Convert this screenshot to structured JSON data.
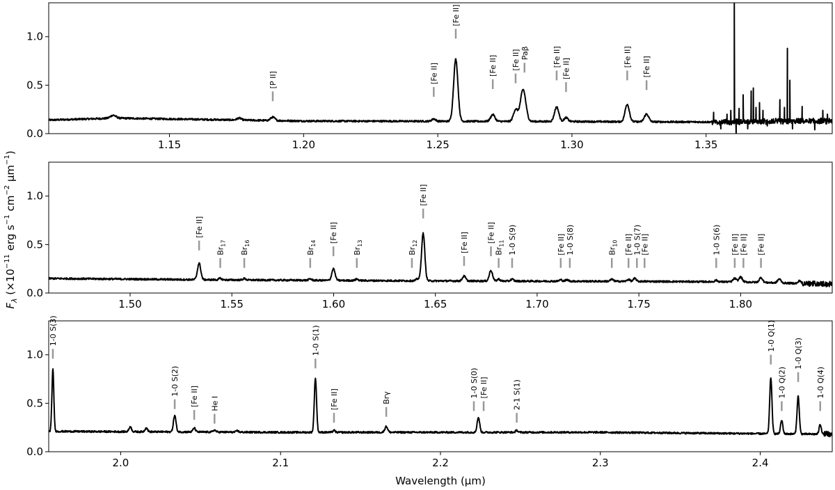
{
  "chart_data": {
    "type": "line",
    "ylabel_main": "F",
    "ylabel_sub": "λ",
    "ylabel_rest": " (×10",
    "ylabel_exp1": "−11",
    "ylabel_mid1": " erg s",
    "ylabel_exp2": "−1",
    "ylabel_mid2": " cm",
    "ylabel_exp3": "−2",
    "ylabel_mid3": " μm",
    "ylabel_exp4": "−1",
    "ylabel_end": ")",
    "xlabel": "Wavelength (μm)",
    "line_color": "#000000",
    "marker_color": "#999999",
    "panels": [
      {
        "xlim": [
          1.105,
          1.397
        ],
        "ylim": [
          0.0,
          1.35
        ],
        "xticks": [
          1.15,
          1.2,
          1.25,
          1.3,
          1.35
        ],
        "xtick_labels": [
          "1.15",
          "1.20",
          "1.25",
          "1.30",
          "1.35"
        ],
        "yticks": [
          0.0,
          0.5,
          1.0
        ],
        "ytick_labels": [
          "0.0",
          "0.5",
          "1.0"
        ],
        "baseline": [
          [
            1.105,
            0.14
          ],
          [
            1.13,
            0.16
          ],
          [
            1.2,
            0.13
          ],
          [
            1.3,
            0.125
          ],
          [
            1.35,
            0.12
          ],
          [
            1.397,
            0.13
          ]
        ],
        "peaks": [
          {
            "x": 1.129,
            "h": 0.03,
            "w": 0.001
          },
          {
            "x": 1.176,
            "h": 0.02,
            "w": 0.0008
          },
          {
            "x": 1.1885,
            "h": 0.035,
            "w": 0.0008
          },
          {
            "x": 1.2485,
            "h": 0.025,
            "w": 0.0007
          },
          {
            "x": 1.2567,
            "h": 0.64,
            "w": 0.0008
          },
          {
            "x": 1.2705,
            "h": 0.07,
            "w": 0.0008
          },
          {
            "x": 1.279,
            "h": 0.12,
            "w": 0.0008
          },
          {
            "x": 1.2818,
            "h": 0.33,
            "w": 0.001
          },
          {
            "x": 1.2943,
            "h": 0.15,
            "w": 0.0008
          },
          {
            "x": 1.2978,
            "h": 0.04,
            "w": 0.0007
          },
          {
            "x": 1.3206,
            "h": 0.18,
            "w": 0.0008
          },
          {
            "x": 1.3278,
            "h": 0.08,
            "w": 0.0008
          }
        ],
        "noise_region": [
          1.352,
          1.397
        ],
        "spikes": [
          {
            "x": 1.3528,
            "y": 0.22
          },
          {
            "x": 1.3555,
            "y": 0.05
          },
          {
            "x": 1.3578,
            "y": 0.2
          },
          {
            "x": 1.3592,
            "y": 0.24
          },
          {
            "x": 1.3605,
            "y": 1.35
          },
          {
            "x": 1.3612,
            "y": 0.0
          },
          {
            "x": 1.3623,
            "y": 0.26
          },
          {
            "x": 1.3638,
            "y": 0.4
          },
          {
            "x": 1.3655,
            "y": 0.05
          },
          {
            "x": 1.3668,
            "y": 0.44
          },
          {
            "x": 1.3676,
            "y": 0.47
          },
          {
            "x": 1.3686,
            "y": 0.27
          },
          {
            "x": 1.3699,
            "y": 0.32
          },
          {
            "x": 1.3712,
            "y": 0.24
          },
          {
            "x": 1.3728,
            "y": 0.08
          },
          {
            "x": 1.3775,
            "y": 0.35
          },
          {
            "x": 1.3792,
            "y": 0.27
          },
          {
            "x": 1.3803,
            "y": 0.88
          },
          {
            "x": 1.3812,
            "y": 0.55
          },
          {
            "x": 1.3822,
            "y": 0.05
          },
          {
            "x": 1.3858,
            "y": 0.28
          },
          {
            "x": 1.3875,
            "y": 0.13
          },
          {
            "x": 1.3905,
            "y": 0.04
          },
          {
            "x": 1.3935,
            "y": 0.24
          },
          {
            "x": 1.3952,
            "y": 0.2
          },
          {
            "x": 1.3965,
            "y": 0.14
          }
        ],
        "lines": [
          {
            "label": "[P II]",
            "x": 1.1885,
            "y": 0.335
          },
          {
            "label": "[Fe II]",
            "x": 1.2485,
            "y": 0.38
          },
          {
            "label": "[Fe II]",
            "x": 1.2567,
            "y": 0.98
          },
          {
            "label": "[Fe II]",
            "x": 1.2705,
            "y": 0.46
          },
          {
            "label": "[Fe II]",
            "x": 1.279,
            "y": 0.52
          },
          {
            "label": "Pa",
            "greek": "β",
            "x": 1.2818,
            "y": 0.63,
            "dx": 2
          },
          {
            "label": "[Fe II]",
            "x": 1.2943,
            "y": 0.55
          },
          {
            "label": "[Fe II]",
            "x": 1.2978,
            "y": 0.43
          },
          {
            "label": "[Fe II]",
            "x": 1.3206,
            "y": 0.55
          },
          {
            "label": "[Fe II]",
            "x": 1.3278,
            "y": 0.45
          }
        ]
      },
      {
        "xlim": [
          1.46,
          1.845
        ],
        "ylim": [
          0.0,
          1.35
        ],
        "xticks": [
          1.5,
          1.55,
          1.6,
          1.65,
          1.7,
          1.75,
          1.8
        ],
        "xtick_labels": [
          "1.50",
          "1.55",
          "1.60",
          "1.65",
          "1.70",
          "1.75",
          "1.80"
        ],
        "yticks": [
          0.0,
          0.5,
          1.0
        ],
        "ytick_labels": [
          "0.0",
          "0.5",
          "1.0"
        ],
        "baseline": [
          [
            1.46,
            0.15
          ],
          [
            1.55,
            0.135
          ],
          [
            1.65,
            0.125
          ],
          [
            1.75,
            0.12
          ],
          [
            1.8,
            0.115
          ],
          [
            1.845,
            0.09
          ]
        ],
        "peaks": [
          {
            "x": 1.5339,
            "h": 0.17,
            "w": 0.0008
          },
          {
            "x": 1.5443,
            "h": 0.015,
            "w": 0.0007
          },
          {
            "x": 1.5561,
            "h": 0.015,
            "w": 0.0007
          },
          {
            "x": 1.5885,
            "h": 0.015,
            "w": 0.0007
          },
          {
            "x": 1.5999,
            "h": 0.12,
            "w": 0.0008
          },
          {
            "x": 1.6114,
            "h": 0.015,
            "w": 0.0007
          },
          {
            "x": 1.6412,
            "h": 0.02,
            "w": 0.0007
          },
          {
            "x": 1.644,
            "h": 0.49,
            "w": 0.0008
          },
          {
            "x": 1.6641,
            "h": 0.05,
            "w": 0.0008
          },
          {
            "x": 1.6773,
            "h": 0.11,
            "w": 0.0008
          },
          {
            "x": 1.6811,
            "h": 0.02,
            "w": 0.0007
          },
          {
            "x": 1.6877,
            "h": 0.02,
            "w": 0.0007
          },
          {
            "x": 1.7116,
            "h": 0.015,
            "w": 0.0007
          },
          {
            "x": 1.7147,
            "h": 0.015,
            "w": 0.0007
          },
          {
            "x": 1.7367,
            "h": 0.02,
            "w": 0.0008
          },
          {
            "x": 1.7449,
            "h": 0.02,
            "w": 0.0007
          },
          {
            "x": 1.748,
            "h": 0.03,
            "w": 0.0007
          },
          {
            "x": 1.788,
            "h": 0.015,
            "w": 0.0007
          },
          {
            "x": 1.7971,
            "h": 0.035,
            "w": 0.0008
          },
          {
            "x": 1.8,
            "h": 0.05,
            "w": 0.0008
          },
          {
            "x": 1.81,
            "h": 0.05,
            "w": 0.0008
          },
          {
            "x": 1.819,
            "h": 0.04,
            "w": 0.0008
          },
          {
            "x": 1.829,
            "h": 0.03,
            "w": 0.0006
          }
        ],
        "noise_region": [
          1.83,
          1.845
        ],
        "spikes": [],
        "lines": [
          {
            "label": "[Fe II]",
            "x": 1.5339,
            "y": 0.44
          },
          {
            "label": "Br",
            "sub": "17",
            "x": 1.5443,
            "y": 0.26
          },
          {
            "label": "Br",
            "sub": "16",
            "x": 1.5561,
            "y": 0.26
          },
          {
            "label": "Br",
            "sub": "14",
            "x": 1.5885,
            "y": 0.26
          },
          {
            "label": "[Fe II]",
            "x": 1.5999,
            "y": 0.38
          },
          {
            "label": "Br",
            "sub": "13",
            "x": 1.6114,
            "y": 0.26
          },
          {
            "label": "Br",
            "sub": "12",
            "x": 1.6412,
            "y": 0.26,
            "dx": -8
          },
          {
            "label": "[Fe II]",
            "x": 1.644,
            "y": 0.77
          },
          {
            "label": "[Fe II]",
            "x": 1.6641,
            "y": 0.28
          },
          {
            "label": "[Fe II]",
            "x": 1.6773,
            "y": 0.38
          },
          {
            "label": "Br",
            "sub": "11",
            "x": 1.6811,
            "y": 0.26
          },
          {
            "label": "1-0 S(9)",
            "x": 1.6877,
            "y": 0.26
          },
          {
            "label": "[Fe II]",
            "x": 1.7116,
            "y": 0.26
          },
          {
            "label": "1-0 S(8)",
            "x": 1.7147,
            "y": 0.26,
            "dx": 4
          },
          {
            "label": "Br",
            "sub": "10",
            "x": 1.7367,
            "y": 0.26
          },
          {
            "label": "[Fe II]",
            "x": 1.7449,
            "y": 0.26
          },
          {
            "label": "1-0 S(7)",
            "x": 1.748,
            "y": 0.26,
            "dx": 3
          },
          {
            "label": "[Fe II]",
            "x": 1.748,
            "y": 0.26,
            "dx": 14
          },
          {
            "label": "1-0 S(6)",
            "x": 1.788,
            "y": 0.26
          },
          {
            "label": "[Fe II]",
            "x": 1.7971,
            "y": 0.26
          },
          {
            "label": "[Fe II]",
            "x": 1.8,
            "y": 0.26,
            "dx": 4
          },
          {
            "label": "[Fe II]",
            "x": 1.81,
            "y": 0.26
          }
        ]
      },
      {
        "xlim": [
          1.955,
          2.445
        ],
        "ylim": [
          0.0,
          1.35
        ],
        "xticks": [
          2.0,
          2.1,
          2.2,
          2.3,
          2.4
        ],
        "xtick_labels": [
          "2.0",
          "2.1",
          "2.2",
          "2.3",
          "2.4"
        ],
        "yticks": [
          0.0,
          0.5,
          1.0
        ],
        "ytick_labels": [
          "0.0",
          "0.5",
          "1.0"
        ],
        "baseline": [
          [
            1.955,
            0.21
          ],
          [
            2.1,
            0.2
          ],
          [
            2.2,
            0.2
          ],
          [
            2.3,
            0.2
          ],
          [
            2.445,
            0.18
          ]
        ],
        "peaks": [
          {
            "x": 1.9576,
            "h": 0.64,
            "w": 0.0006
          },
          {
            "x": 2.006,
            "h": 0.05,
            "w": 0.0008
          },
          {
            "x": 2.016,
            "h": 0.04,
            "w": 0.0008
          },
          {
            "x": 2.0338,
            "h": 0.17,
            "w": 0.0008
          },
          {
            "x": 2.046,
            "h": 0.04,
            "w": 0.0008
          },
          {
            "x": 2.0587,
            "h": 0.02,
            "w": 0.0008
          },
          {
            "x": 2.073,
            "h": 0.015,
            "w": 0.0007
          },
          {
            "x": 2.1218,
            "h": 0.56,
            "w": 0.0007
          },
          {
            "x": 2.1334,
            "h": 0.02,
            "w": 0.0007
          },
          {
            "x": 2.1661,
            "h": 0.06,
            "w": 0.0009
          },
          {
            "x": 2.2235,
            "h": 0.13,
            "w": 0.0007
          },
          {
            "x": 2.2244,
            "h": 0.05,
            "w": 0.0006
          },
          {
            "x": 2.2477,
            "h": 0.02,
            "w": 0.0007
          },
          {
            "x": 2.4066,
            "h": 0.58,
            "w": 0.0007
          },
          {
            "x": 2.4134,
            "h": 0.14,
            "w": 0.0007
          },
          {
            "x": 2.4237,
            "h": 0.39,
            "w": 0.0007
          },
          {
            "x": 2.4375,
            "h": 0.1,
            "w": 0.0007
          }
        ],
        "noise_region": [
          2.44,
          2.445
        ],
        "spikes": [],
        "lines": [
          {
            "label": "1-0 S(3)",
            "x": 1.9576,
            "y": 0.96
          },
          {
            "label": "1-0 S(2)",
            "x": 2.0338,
            "y": 0.44
          },
          {
            "label": "[Fe II]",
            "x": 2.046,
            "y": 0.33
          },
          {
            "label": "He I",
            "x": 2.0587,
            "y": 0.29
          },
          {
            "label": "1-0 S(1)",
            "x": 2.1218,
            "y": 0.86
          },
          {
            "label": "[Fe II]",
            "x": 2.1334,
            "y": 0.3
          },
          {
            "label": "Br",
            "greek": "γ",
            "x": 2.1661,
            "y": 0.36
          },
          {
            "label": "1-0 S(0)",
            "x": 2.2235,
            "y": 0.42,
            "dx": -6
          },
          {
            "label": "[Fe II]",
            "x": 2.2244,
            "y": 0.42,
            "dx": 6
          },
          {
            "label": "2-1 S(1)",
            "x": 2.2477,
            "y": 0.3
          },
          {
            "label": "1-0 Q(1)",
            "x": 2.4066,
            "y": 0.9
          },
          {
            "label": "1-0 Q(2)",
            "x": 2.4134,
            "y": 0.42
          },
          {
            "label": "1-0 Q(3)",
            "x": 2.4237,
            "y": 0.72
          },
          {
            "label": "1-0 Q(4)",
            "x": 2.4375,
            "y": 0.42
          }
        ]
      }
    ]
  }
}
